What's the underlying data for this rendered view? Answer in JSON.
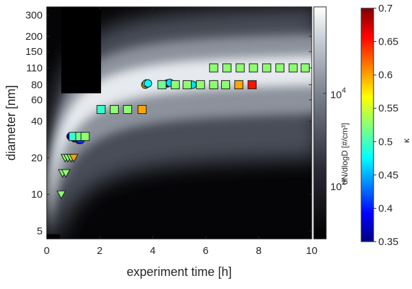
{
  "chart_data": {
    "type": "scatter",
    "xlabel": "experiment time [h]",
    "ylabel": "diameter [nm]",
    "xlim": [
      0,
      10
    ],
    "ylim": [
      4.3,
      350
    ],
    "y_scale": "log",
    "x_ticks": [
      0,
      2,
      4,
      6,
      8,
      10
    ],
    "x_tick_labels": [
      "0",
      "2",
      "4",
      "6",
      "8",
      "10"
    ],
    "y_ticks": [
      5,
      10,
      20,
      40,
      60,
      80,
      110,
      150,
      200,
      300
    ],
    "y_tick_labels": [
      "5",
      "10",
      "20",
      "40",
      "60",
      "80",
      "110",
      "150",
      "200",
      "300"
    ],
    "background": {
      "type": "heatmap",
      "colormap": "gray",
      "label": "dN/dlogD [#/cm³]",
      "colorbar_ticks": [
        "10",
        "10"
      ],
      "colorbar_tick_exponents": [
        "2",
        "4"
      ]
    },
    "color_axis": {
      "label": "κ",
      "colormap": "jet",
      "range": [
        0.35,
        0.7
      ],
      "ticks": [
        "0.35",
        "0.4",
        "0.45",
        "0.5",
        "0.55",
        "0.6",
        "0.65",
        "0.7"
      ]
    },
    "series": [
      {
        "marker": "triangle",
        "points": [
          {
            "x": 0.55,
            "y": 10,
            "kappa": 0.53
          },
          {
            "x": 0.6,
            "y": 15,
            "kappa": 0.53
          },
          {
            "x": 0.72,
            "y": 15,
            "kappa": 0.53
          },
          {
            "x": 0.7,
            "y": 20,
            "kappa": 0.53
          },
          {
            "x": 0.8,
            "y": 20,
            "kappa": 0.53
          },
          {
            "x": 0.92,
            "y": 20,
            "kappa": 0.53
          },
          {
            "x": 1.02,
            "y": 20,
            "kappa": 0.6
          }
        ]
      },
      {
        "marker": "circle",
        "points": [
          {
            "x": 0.9,
            "y": 30,
            "kappa": 0.37
          },
          {
            "x": 1.0,
            "y": 30,
            "kappa": 0.36
          },
          {
            "x": 1.05,
            "y": 29,
            "kappa": 0.37
          },
          {
            "x": 1.15,
            "y": 29,
            "kappa": 0.38
          },
          {
            "x": 1.22,
            "y": 28,
            "kappa": 0.39
          },
          {
            "x": 1.28,
            "y": 28,
            "kappa": 0.41
          },
          {
            "x": 3.72,
            "y": 80,
            "kappa": 0.6
          },
          {
            "x": 3.76,
            "y": 82,
            "kappa": 0.53
          },
          {
            "x": 3.82,
            "y": 82,
            "kappa": 0.48
          },
          {
            "x": 4.55,
            "y": 82,
            "kappa": 0.38
          },
          {
            "x": 4.65,
            "y": 83,
            "kappa": 0.47
          },
          {
            "x": 5.35,
            "y": 80,
            "kappa": 0.4
          },
          {
            "x": 5.42,
            "y": 80,
            "kappa": 0.38
          },
          {
            "x": 5.5,
            "y": 80,
            "kappa": 0.47
          }
        ]
      },
      {
        "marker": "square",
        "points": [
          {
            "x": 1.0,
            "y": 30,
            "kappa": 0.5
          },
          {
            "x": 1.25,
            "y": 30,
            "kappa": 0.52
          },
          {
            "x": 1.45,
            "y": 30,
            "kappa": 0.53
          },
          {
            "x": 2.05,
            "y": 50,
            "kappa": 0.5
          },
          {
            "x": 2.55,
            "y": 50,
            "kappa": 0.53
          },
          {
            "x": 3.05,
            "y": 50,
            "kappa": 0.53
          },
          {
            "x": 3.6,
            "y": 50,
            "kappa": 0.6
          },
          {
            "x": 4.35,
            "y": 80,
            "kappa": 0.52
          },
          {
            "x": 4.85,
            "y": 80,
            "kappa": 0.53
          },
          {
            "x": 5.3,
            "y": 80,
            "kappa": 0.53
          },
          {
            "x": 5.8,
            "y": 80,
            "kappa": 0.53
          },
          {
            "x": 6.3,
            "y": 80,
            "kappa": 0.53
          },
          {
            "x": 6.75,
            "y": 80,
            "kappa": 0.53
          },
          {
            "x": 7.25,
            "y": 80,
            "kappa": 0.6
          },
          {
            "x": 7.75,
            "y": 80,
            "kappa": 0.65
          },
          {
            "x": 6.3,
            "y": 110,
            "kappa": 0.53
          },
          {
            "x": 6.8,
            "y": 110,
            "kappa": 0.53
          },
          {
            "x": 7.3,
            "y": 110,
            "kappa": 0.53
          },
          {
            "x": 7.8,
            "y": 110,
            "kappa": 0.53
          },
          {
            "x": 8.3,
            "y": 110,
            "kappa": 0.53
          },
          {
            "x": 8.8,
            "y": 110,
            "kappa": 0.53
          },
          {
            "x": 9.3,
            "y": 110,
            "kappa": 0.53
          },
          {
            "x": 9.75,
            "y": 110,
            "kappa": 0.53
          }
        ]
      }
    ]
  }
}
